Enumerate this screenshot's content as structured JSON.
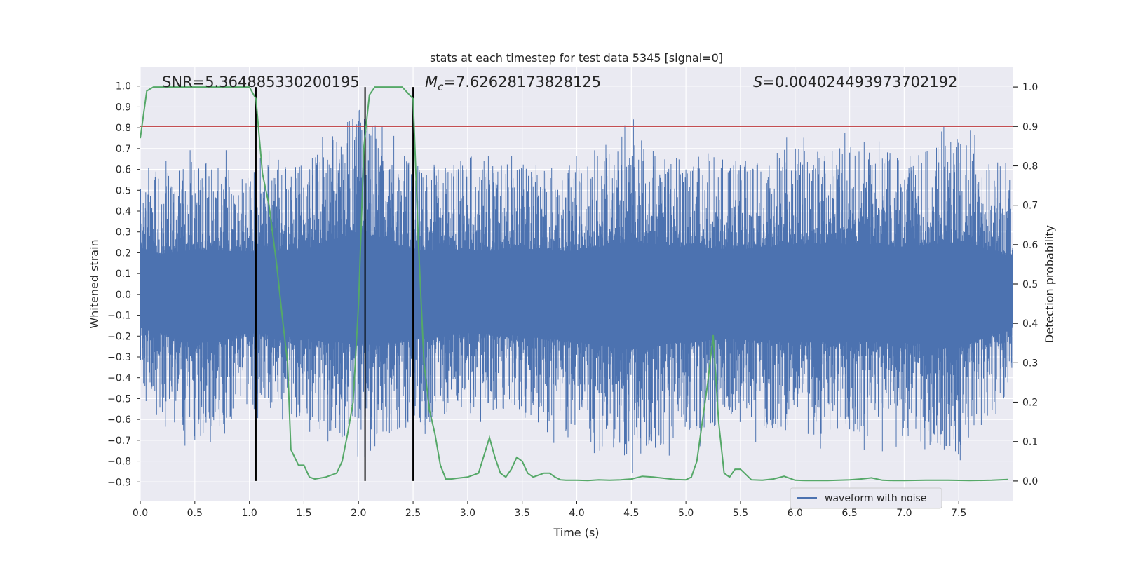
{
  "chart_data": {
    "type": "line",
    "title": "stats at each timestep for test data 5345 [signal=0]",
    "xlabel": "Time (s)",
    "ylabel_left": "Whitened strain",
    "ylabel_right": "Detection probability",
    "xlim": [
      0.0,
      8.0
    ],
    "ylim_left": [
      -0.99,
      1.09
    ],
    "ylim_right": [
      -0.05,
      1.05
    ],
    "x_ticks": [
      0.0,
      0.5,
      1.0,
      1.5,
      2.0,
      2.5,
      3.0,
      3.5,
      4.0,
      4.5,
      5.0,
      5.5,
      6.0,
      6.5,
      7.0,
      7.5
    ],
    "x_tick_labels": [
      "0.0",
      "0.5",
      "1.0",
      "1.5",
      "2.0",
      "2.5",
      "3.0",
      "3.5",
      "4.0",
      "4.5",
      "5.0",
      "5.5",
      "6.0",
      "6.5",
      "7.0",
      "7.5"
    ],
    "y_left_ticks": [
      1.0,
      0.9,
      0.8,
      0.7,
      0.6,
      0.5,
      0.4,
      0.3,
      0.2,
      0.1,
      0.0,
      -0.1,
      -0.2,
      -0.3,
      -0.4,
      -0.5,
      -0.6,
      -0.7,
      -0.8,
      -0.9
    ],
    "y_left_tick_labels": [
      "1.0",
      "0.9",
      "0.8",
      "0.7",
      "0.6",
      "0.5",
      "0.4",
      "0.3",
      "0.2",
      "0.1",
      "0.0",
      "−0.1",
      "−0.2",
      "−0.3",
      "−0.4",
      "−0.5",
      "−0.6",
      "−0.7",
      "−0.8",
      "−0.9"
    ],
    "y_right_ticks": [
      1.0,
      0.9,
      0.8,
      0.7,
      0.6,
      0.5,
      0.4,
      0.3,
      0.2,
      0.1,
      0.0
    ],
    "y_right_tick_labels": [
      "1.0",
      "0.9",
      "0.8",
      "0.7",
      "0.6",
      "0.5",
      "0.4",
      "0.3",
      "0.2",
      "0.1",
      "0.0"
    ],
    "annotations": {
      "snr": "SNR=5.364885330200195",
      "mc_symbol": "M",
      "mc_subscript": "c",
      "mc_value": "=7.62628173828125",
      "s_symbol": "S",
      "s_value": "=0.004024493973702192"
    },
    "threshold_line": {
      "axis": "right",
      "y": 0.9,
      "color": "#c44e52"
    },
    "event_markers_x": [
      1.06,
      2.06,
      2.5
    ],
    "grid": true,
    "legend": {
      "placement": "lower center-right",
      "entries": [
        "waveform with noise"
      ]
    },
    "series": [
      {
        "name": "waveform with noise",
        "axis": "left",
        "color": "#4c72b0",
        "render": "dense noisy strain trace (approx. envelope)",
        "envelope_x": [
          0.0,
          0.5,
          1.0,
          1.5,
          2.0,
          2.5,
          3.0,
          3.5,
          4.0,
          4.5,
          5.0,
          5.5,
          6.0,
          6.5,
          7.0,
          7.5,
          8.0
        ],
        "envelope_upper": [
          0.6,
          0.72,
          0.68,
          0.72,
          1.0,
          0.7,
          0.7,
          0.7,
          0.7,
          0.85,
          0.75,
          0.72,
          0.8,
          0.8,
          0.76,
          0.84,
          0.6
        ],
        "envelope_lower": [
          -0.52,
          -0.79,
          -0.62,
          -0.7,
          -0.8,
          -0.72,
          -0.62,
          -0.66,
          -0.76,
          -0.88,
          -0.75,
          -0.7,
          -0.76,
          -0.76,
          -0.76,
          -0.86,
          -0.5
        ]
      },
      {
        "name": "",
        "axis": "right",
        "color": "#55a868",
        "x": [
          0.0,
          0.06,
          0.12,
          0.2,
          0.3,
          0.4,
          0.5,
          0.6,
          0.7,
          0.8,
          0.9,
          1.0,
          1.06,
          1.12,
          1.18,
          1.25,
          1.3,
          1.35,
          1.38,
          1.45,
          1.5,
          1.55,
          1.6,
          1.7,
          1.8,
          1.85,
          1.9,
          1.95,
          2.0,
          2.05,
          2.1,
          2.15,
          2.2,
          2.3,
          2.4,
          2.5,
          2.55,
          2.6,
          2.65,
          2.7,
          2.75,
          2.8,
          2.85,
          2.9,
          3.0,
          3.1,
          3.2,
          3.25,
          3.3,
          3.35,
          3.4,
          3.45,
          3.5,
          3.55,
          3.6,
          3.65,
          3.7,
          3.75,
          3.8,
          3.85,
          3.9,
          4.0,
          4.1,
          4.2,
          4.3,
          4.4,
          4.5,
          4.6,
          4.7,
          4.8,
          4.9,
          5.0,
          5.05,
          5.1,
          5.15,
          5.2,
          5.25,
          5.3,
          5.35,
          5.4,
          5.45,
          5.5,
          5.6,
          5.7,
          5.8,
          5.9,
          6.0,
          6.1,
          6.2,
          6.3,
          6.4,
          6.5,
          6.6,
          6.7,
          6.8,
          6.9,
          7.0,
          7.2,
          7.4,
          7.6,
          7.8,
          7.95
        ],
        "y": [
          0.87,
          0.99,
          1.0,
          1.0,
          1.0,
          1.0,
          1.0,
          1.0,
          1.0,
          1.0,
          1.0,
          1.0,
          0.97,
          0.78,
          0.7,
          0.55,
          0.42,
          0.3,
          0.08,
          0.04,
          0.04,
          0.01,
          0.005,
          0.01,
          0.02,
          0.05,
          0.12,
          0.2,
          0.45,
          0.85,
          0.98,
          1.0,
          1.0,
          1.0,
          1.0,
          0.97,
          0.6,
          0.3,
          0.18,
          0.12,
          0.04,
          0.005,
          0.005,
          0.007,
          0.01,
          0.02,
          0.11,
          0.06,
          0.02,
          0.01,
          0.03,
          0.06,
          0.05,
          0.02,
          0.01,
          0.015,
          0.02,
          0.02,
          0.01,
          0.003,
          0.002,
          0.002,
          0.001,
          0.003,
          0.002,
          0.003,
          0.005,
          0.012,
          0.01,
          0.007,
          0.004,
          0.003,
          0.01,
          0.05,
          0.15,
          0.25,
          0.37,
          0.15,
          0.02,
          0.01,
          0.03,
          0.03,
          0.003,
          0.002,
          0.005,
          0.012,
          0.002,
          0.001,
          0.001,
          0.001,
          0.002,
          0.003,
          0.005,
          0.008,
          0.002,
          0.001,
          0.001,
          0.002,
          0.002,
          0.001,
          0.002,
          0.004
        ]
      }
    ]
  }
}
